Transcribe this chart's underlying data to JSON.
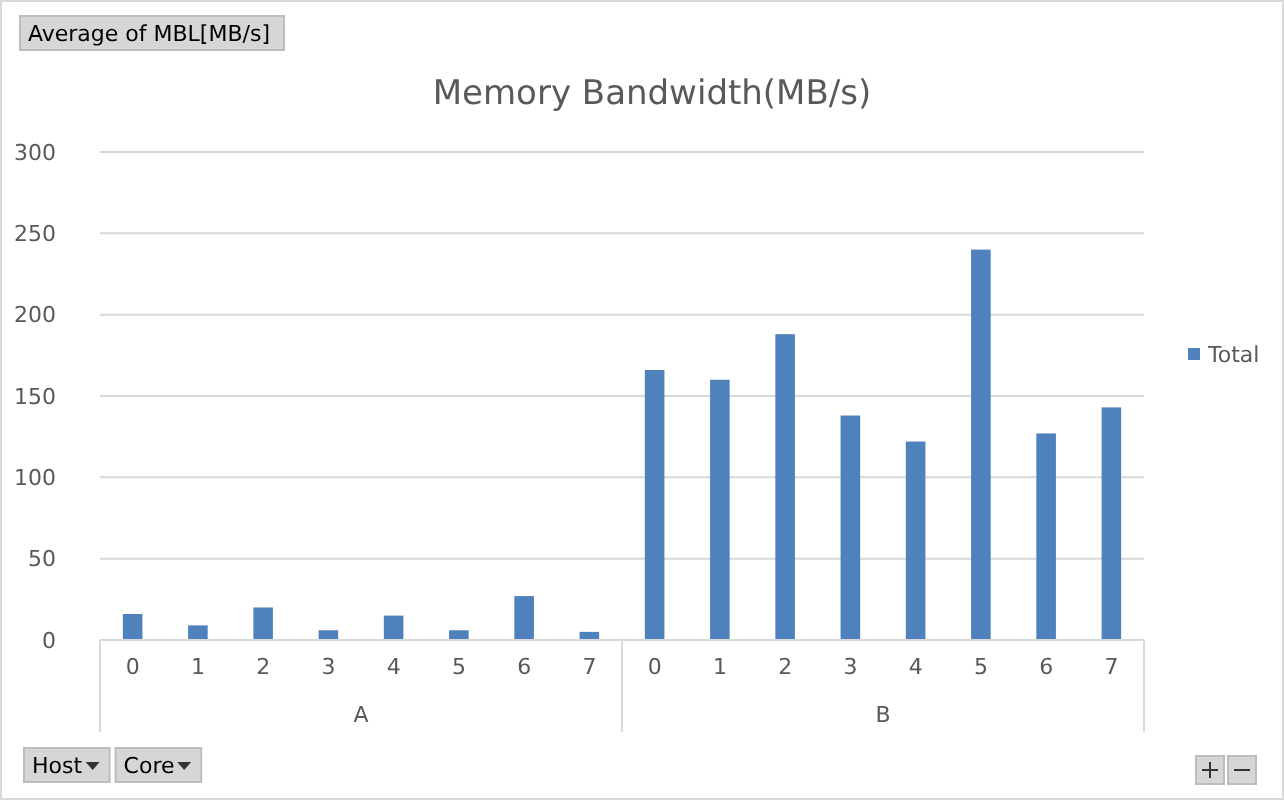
{
  "chart_data": {
    "type": "bar",
    "title": "Memory Bandwidth(MB/s)",
    "categories": [
      "0",
      "1",
      "2",
      "3",
      "4",
      "5",
      "6",
      "7",
      "0",
      "1",
      "2",
      "3",
      "4",
      "5",
      "6",
      "7"
    ],
    "series": [
      {
        "name": "Total",
        "color": "#4f81bd",
        "values": [
          16,
          9,
          20,
          6,
          15,
          6,
          27,
          5,
          166,
          160,
          188,
          138,
          122,
          240,
          127,
          143
        ]
      }
    ],
    "ylim": [
      0,
      300
    ],
    "yticks": [
      0,
      50,
      100,
      150,
      200,
      250,
      300
    ],
    "grid": "y",
    "legend": "right",
    "annotations": [
      "Average of MBL[MB/s]",
      "Host",
      "Core",
      "A",
      "B"
    ]
  }
}
